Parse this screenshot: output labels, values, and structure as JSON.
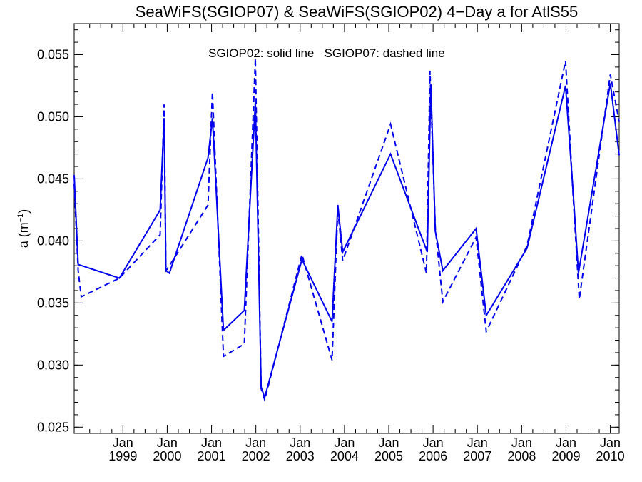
{
  "chart_data": {
    "type": "line",
    "title": "SeaWiFS(SGIOP07) & SeaWiFS(SGIOP02) 4−Day a for AtlS55",
    "ylabel_base": "a (m",
    "ylabel_sup": "−1",
    "ylabel_end": ")",
    "xlabel": "",
    "annotation": "SGIOP02: solid line   SGIOP07: dashed line",
    "xlim": [
      1997.9,
      2010.2
    ],
    "ylim": [
      0.0245,
      0.0575
    ],
    "y_ticks": [
      0.025,
      0.03,
      0.035,
      0.04,
      0.045,
      0.05,
      0.055
    ],
    "y_tick_labels": [
      "0.025",
      "0.030",
      "0.035",
      "0.040",
      "0.045",
      "0.050",
      "0.055"
    ],
    "x_ticks": [
      {
        "value": 1999.0,
        "month": "Jan",
        "year": "1999"
      },
      {
        "value": 2000.0,
        "month": "Jan",
        "year": "2000"
      },
      {
        "value": 2001.0,
        "month": "Jan",
        "year": "2001"
      },
      {
        "value": 2002.0,
        "month": "Jan",
        "year": "2002"
      },
      {
        "value": 2003.0,
        "month": "Jan",
        "year": "2003"
      },
      {
        "value": 2004.0,
        "month": "Jan",
        "year": "2004"
      },
      {
        "value": 2005.0,
        "month": "Jan",
        "year": "2005"
      },
      {
        "value": 2006.0,
        "month": "Jan",
        "year": "2006"
      },
      {
        "value": 2007.0,
        "month": "Jan",
        "year": "2007"
      },
      {
        "value": 2008.0,
        "month": "Jan",
        "year": "2008"
      },
      {
        "value": 2009.0,
        "month": "Jan",
        "year": "2009"
      },
      {
        "value": 2010.0,
        "month": "Jan",
        "year": "2010"
      }
    ],
    "grid": false,
    "color": "#0000ee",
    "series": [
      {
        "style": "solid",
        "x": [
          1997.9,
          1997.99,
          1998.92,
          1999.84,
          1999.93,
          1999.97,
          2000.05,
          2000.92,
          2001.02,
          2001.27,
          2001.74,
          2001.99,
          2002.12,
          2002.2,
          2003.04,
          2003.72,
          2003.85,
          2003.96,
          2005.04,
          2005.87,
          2005.95,
          2006.05,
          2006.22,
          2006.97,
          2007.2,
          2008.12,
          2008.99,
          2009.17,
          2009.28,
          2010.0,
          2010.2
        ],
        "y": [
          0.0453,
          0.0381,
          0.037,
          0.0425,
          0.0499,
          0.0376,
          0.0374,
          0.0467,
          0.0499,
          0.0328,
          0.0344,
          0.0512,
          0.0282,
          0.0274,
          0.0385,
          0.0335,
          0.0429,
          0.0391,
          0.047,
          0.0391,
          0.0526,
          0.0408,
          0.0376,
          0.041,
          0.034,
          0.0394,
          0.0525,
          0.0435,
          0.0374,
          0.0527,
          0.0469
        ]
      },
      {
        "style": "dashed",
        "x": [
          1997.9,
          1997.99,
          1998.06,
          1998.92,
          1999.84,
          1999.93,
          1999.97,
          2000.05,
          2000.92,
          2001.02,
          2001.27,
          2001.74,
          2001.99,
          2002.12,
          2002.2,
          2003.04,
          2003.72,
          2003.85,
          2003.96,
          2005.04,
          2005.85,
          2005.93,
          2006.05,
          2006.22,
          2006.97,
          2007.2,
          2008.12,
          2008.99,
          2009.17,
          2009.3,
          2010.0,
          2010.2
        ],
        "y": [
          0.0446,
          0.0376,
          0.0355,
          0.037,
          0.0405,
          0.051,
          0.0376,
          0.038,
          0.0429,
          0.052,
          0.0307,
          0.0317,
          0.0547,
          0.0281,
          0.0272,
          0.0389,
          0.0304,
          0.0426,
          0.0384,
          0.0494,
          0.0374,
          0.0537,
          0.0411,
          0.0351,
          0.0403,
          0.0327,
          0.0396,
          0.0545,
          0.0431,
          0.0353,
          0.0534,
          0.0496
        ]
      }
    ]
  }
}
